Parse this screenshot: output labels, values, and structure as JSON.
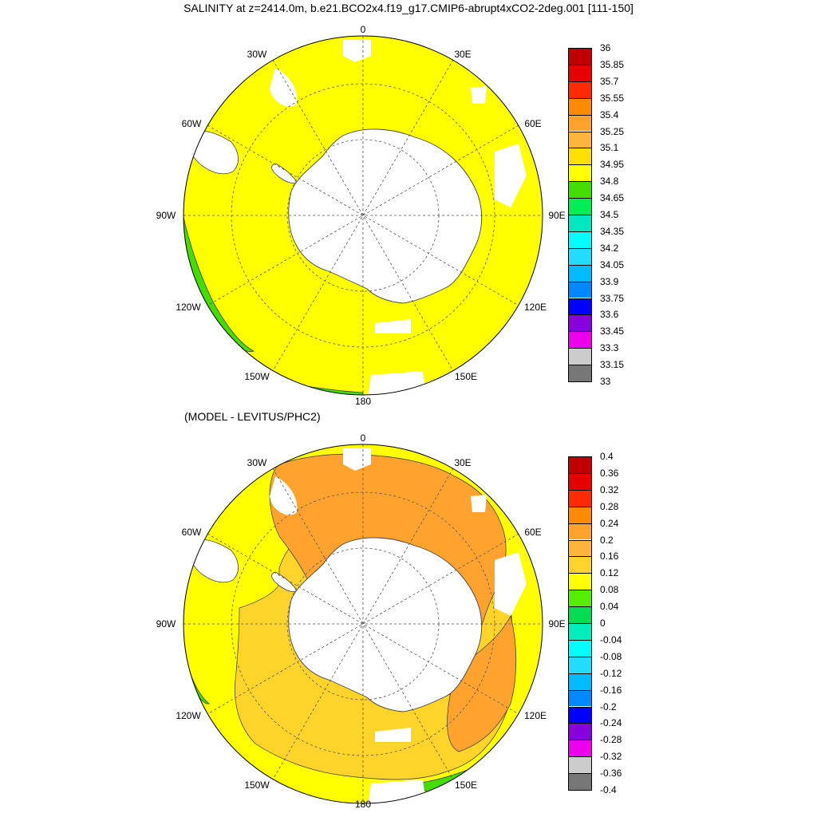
{
  "title": "SALINITY at z=2414.0m, b.e21.BCO2x4.f19_g17.CMIP6-abrupt4xCO2-2deg.001 [111-150]",
  "subtitle": "(MODEL - LEVITUS/PHC2)",
  "longitude_labels": [
    "0",
    "30E",
    "60E",
    "90E",
    "120E",
    "150E",
    "180",
    "150W",
    "120W",
    "90W",
    "60W",
    "30W"
  ],
  "colors": {
    "land": "#ffffff",
    "coast": "#444444",
    "grid": "#555555"
  },
  "maps": [
    {
      "name": "salinity",
      "colorbar": {
        "labels": [
          "36",
          "35.85",
          "35.7",
          "35.55",
          "35.4",
          "35.25",
          "35.1",
          "34.95",
          "34.8",
          "34.65",
          "34.5",
          "34.35",
          "34.2",
          "34.05",
          "33.9",
          "33.75",
          "33.6",
          "33.45",
          "33.3",
          "33.15",
          "33"
        ],
        "colors": [
          "#c00000",
          "#e60000",
          "#ff2a00",
          "#ff8c00",
          "#ffa32e",
          "#ffb43c",
          "#ffe000",
          "#ffff00",
          "#44dd00",
          "#00ee55",
          "#00e8c0",
          "#00ffff",
          "#22ddff",
          "#00bbff",
          "#0088ff",
          "#0000ff",
          "#8800dd",
          "#ee00ee",
          "#cccccc",
          "#777777"
        ]
      },
      "dominant_fill": "#ffff00",
      "edge_fill": "#44dd00"
    },
    {
      "name": "difference",
      "colorbar": {
        "labels": [
          "0.4",
          "0.36",
          "0.32",
          "0.28",
          "0.24",
          "0.2",
          "0.16",
          "0.12",
          "0.08",
          "0.04",
          "0",
          "-0.04",
          "-0.08",
          "-0.12",
          "-0.16",
          "-0.2",
          "-0.24",
          "-0.28",
          "-0.32",
          "-0.36",
          "-0.4"
        ],
        "colors": [
          "#c00000",
          "#e60000",
          "#ff2a00",
          "#ff8c00",
          "#ffa32e",
          "#ffb43c",
          "#ffd42a",
          "#ffff00",
          "#55ee00",
          "#00dd55",
          "#00eebb",
          "#00ffff",
          "#22ddff",
          "#00bbff",
          "#0088ff",
          "#0000ff",
          "#8800dd",
          "#ee00ee",
          "#cccccc",
          "#777777"
        ]
      },
      "dominant_fill": "#ffd42a",
      "edge_fill": "#44dd00"
    }
  ]
}
